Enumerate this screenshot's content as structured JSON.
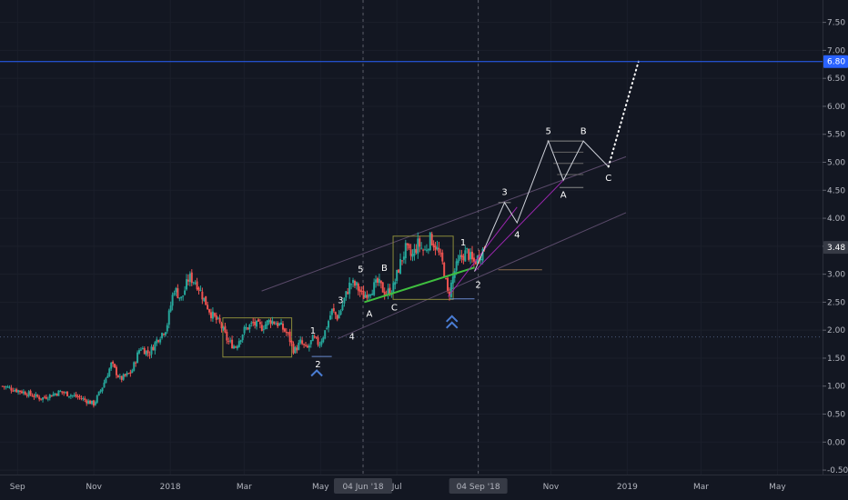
{
  "chart_data": {
    "type": "candlestick",
    "y_axis": {
      "ticks": [
        7.5,
        7.0,
        6.5,
        6.0,
        5.5,
        5.0,
        4.5,
        4.0,
        3.5,
        3.0,
        2.5,
        2.0,
        1.5,
        1.0,
        0.5,
        0.0,
        -0.5
      ],
      "tick_labels": [
        "7.50",
        "7.00",
        "6.50",
        "6.00",
        "5.50",
        "5.00",
        "4.50",
        "4.00",
        "3.50",
        "3.00",
        "2.50",
        "2.00",
        "1.50",
        "1.00",
        "0.50",
        "0.00",
        "-0.50"
      ],
      "ylim": [
        -0.58,
        7.9
      ]
    },
    "x_axis": {
      "ticks": [
        {
          "label": "Sep",
          "x": "2017-09-01"
        },
        {
          "label": "Nov",
          "x": "2017-11-01"
        },
        {
          "label": "2018",
          "x": "2018-01-01"
        },
        {
          "label": "Mar",
          "x": "2018-03-01"
        },
        {
          "label": "May",
          "x": "2018-05-01"
        },
        {
          "label": "04 Jun '18",
          "x": "2018-06-04",
          "highlighted": true
        },
        {
          "label": "Jul",
          "x": "2018-07-01"
        },
        {
          "label": "04 Sep '18",
          "x": "2018-09-04",
          "highlighted": true
        },
        {
          "label": "Nov",
          "x": "2018-11-01"
        },
        {
          "label": "2019",
          "x": "2019-01-01"
        },
        {
          "label": "Mar",
          "x": "2019-03-01"
        },
        {
          "label": "May",
          "x": "2019-05-01"
        }
      ],
      "xlim": [
        "2017-08-18",
        "2019-06-06"
      ]
    },
    "price_labels": [
      {
        "value": "6.80",
        "color": "#2962ff"
      },
      {
        "value": "3.48",
        "color": "#363a45"
      }
    ],
    "horizontal_lines": [
      {
        "y": 6.8,
        "color": "#2962ff"
      },
      {
        "y": 1.88,
        "color": "#4a5a7a",
        "style": "dotted"
      }
    ],
    "vertical_lines": [
      {
        "x": "2018-06-04",
        "color": "#5d606b",
        "style": "dashed"
      },
      {
        "x": "2018-09-04",
        "color": "#5d606b",
        "style": "dashed"
      }
    ],
    "price_path": [
      {
        "x": "2017-08-20",
        "y": 1.0
      },
      {
        "x": "2017-09-05",
        "y": 0.9
      },
      {
        "x": "2017-09-20",
        "y": 0.78
      },
      {
        "x": "2017-10-05",
        "y": 0.9
      },
      {
        "x": "2017-10-20",
        "y": 0.8
      },
      {
        "x": "2017-11-01",
        "y": 0.68
      },
      {
        "x": "2017-11-08",
        "y": 1.0
      },
      {
        "x": "2017-11-15",
        "y": 1.4
      },
      {
        "x": "2017-11-22",
        "y": 1.12
      },
      {
        "x": "2017-12-01",
        "y": 1.25
      },
      {
        "x": "2017-12-08",
        "y": 1.7
      },
      {
        "x": "2017-12-15",
        "y": 1.58
      },
      {
        "x": "2017-12-22",
        "y": 1.85
      },
      {
        "x": "2017-12-29",
        "y": 2.05
      },
      {
        "x": "2018-01-04",
        "y": 2.75
      },
      {
        "x": "2018-01-10",
        "y": 2.55
      },
      {
        "x": "2018-01-16",
        "y": 2.95
      },
      {
        "x": "2018-01-22",
        "y": 2.85
      },
      {
        "x": "2018-01-28",
        "y": 2.55
      },
      {
        "x": "2018-02-03",
        "y": 2.28
      },
      {
        "x": "2018-02-10",
        "y": 2.1
      },
      {
        "x": "2018-02-16",
        "y": 1.8
      },
      {
        "x": "2018-02-22",
        "y": 1.7
      },
      {
        "x": "2018-03-01",
        "y": 2.0
      },
      {
        "x": "2018-03-08",
        "y": 2.12
      },
      {
        "x": "2018-03-15",
        "y": 2.05
      },
      {
        "x": "2018-03-22",
        "y": 2.18
      },
      {
        "x": "2018-03-29",
        "y": 2.1
      },
      {
        "x": "2018-04-05",
        "y": 1.92
      },
      {
        "x": "2018-04-10",
        "y": 1.62
      },
      {
        "x": "2018-04-15",
        "y": 1.78
      },
      {
        "x": "2018-04-20",
        "y": 1.65
      },
      {
        "x": "2018-04-25",
        "y": 1.85
      },
      {
        "x": "2018-04-30",
        "y": 1.75
      },
      {
        "x": "2018-05-05",
        "y": 2.0
      },
      {
        "x": "2018-05-10",
        "y": 2.35
      },
      {
        "x": "2018-05-15",
        "y": 2.22
      },
      {
        "x": "2018-05-20",
        "y": 2.55
      },
      {
        "x": "2018-05-25",
        "y": 2.85
      },
      {
        "x": "2018-05-30",
        "y": 2.78
      },
      {
        "x": "2018-06-04",
        "y": 2.6
      },
      {
        "x": "2018-06-10",
        "y": 2.72
      },
      {
        "x": "2018-06-16",
        "y": 2.85
      },
      {
        "x": "2018-06-22",
        "y": 2.65
      },
      {
        "x": "2018-06-28",
        "y": 2.75
      },
      {
        "x": "2018-07-03",
        "y": 3.15
      },
      {
        "x": "2018-07-08",
        "y": 3.45
      },
      {
        "x": "2018-07-13",
        "y": 3.3
      },
      {
        "x": "2018-07-18",
        "y": 3.55
      },
      {
        "x": "2018-07-23",
        "y": 3.4
      },
      {
        "x": "2018-07-28",
        "y": 3.65
      },
      {
        "x": "2018-08-02",
        "y": 3.45
      },
      {
        "x": "2018-08-07",
        "y": 3.15
      },
      {
        "x": "2018-08-11",
        "y": 2.6
      },
      {
        "x": "2018-08-16",
        "y": 3.05
      },
      {
        "x": "2018-08-21",
        "y": 3.3
      },
      {
        "x": "2018-08-26",
        "y": 3.4
      },
      {
        "x": "2018-08-31",
        "y": 3.2
      },
      {
        "x": "2018-09-04",
        "y": 3.3
      },
      {
        "x": "2018-09-09",
        "y": 3.48
      }
    ],
    "wave_projection": [
      {
        "x": "2018-09-01",
        "y": 3.05
      },
      {
        "x": "2018-09-25",
        "y": 4.28
      },
      {
        "x": "2018-10-05",
        "y": 3.92
      },
      {
        "x": "2018-10-30",
        "y": 5.38
      },
      {
        "x": "2018-11-11",
        "y": 4.68
      },
      {
        "x": "2018-11-27",
        "y": 5.38
      },
      {
        "x": "2018-12-17",
        "y": 4.92
      }
    ],
    "wave_projection_dotted": [
      {
        "x": "2018-12-17",
        "y": 4.92
      },
      {
        "x": "2019-01-10",
        "y": 6.8
      }
    ],
    "wave_labels": [
      {
        "text": "1",
        "x": "2018-04-25",
        "y": 2.0
      },
      {
        "text": "2",
        "x": "2018-04-29",
        "y": 1.4
      },
      {
        "text": "3",
        "x": "2018-05-17",
        "y": 2.55
      },
      {
        "text": "4",
        "x": "2018-05-26",
        "y": 1.9
      },
      {
        "text": "5",
        "x": "2018-06-02",
        "y": 3.1
      },
      {
        "text": "A",
        "x": "2018-06-09",
        "y": 2.3
      },
      {
        "text": "B",
        "x": "2018-06-21",
        "y": 3.12
      },
      {
        "text": "C",
        "x": "2018-06-29",
        "y": 2.42
      },
      {
        "text": "1",
        "x": "2018-08-23",
        "y": 3.58
      },
      {
        "text": "2",
        "x": "2018-09-04",
        "y": 2.82
      },
      {
        "text": "3",
        "x": "2018-09-25",
        "y": 4.48
      },
      {
        "text": "4",
        "x": "2018-10-05",
        "y": 3.72
      },
      {
        "text": "5",
        "x": "2018-10-30",
        "y": 5.57
      },
      {
        "text": "A",
        "x": "2018-11-11",
        "y": 4.43
      },
      {
        "text": "B",
        "x": "2018-11-27",
        "y": 5.57
      },
      {
        "text": "C",
        "x": "2018-12-17",
        "y": 4.73
      }
    ],
    "channels": [
      {
        "from": {
          "x": "2018-03-15",
          "y": 2.7
        },
        "to": {
          "x": "2018-12-31",
          "y": 5.1
        },
        "color": "#5a4a6a"
      },
      {
        "from": {
          "x": "2018-05-15",
          "y": 1.85
        },
        "to": {
          "x": "2018-12-31",
          "y": 4.1
        },
        "color": "#5a4a6a"
      }
    ],
    "trendlines": [
      {
        "from": {
          "x": "2018-06-05",
          "y": 2.5
        },
        "to": {
          "x": "2018-09-01",
          "y": 3.12
        },
        "color": "#3fbf3f"
      },
      {
        "from": {
          "x": "2018-08-11",
          "y": 2.6
        },
        "to": {
          "x": "2018-10-05",
          "y": 4.2
        },
        "color": "#9c27b0"
      },
      {
        "from": {
          "x": "2018-09-01",
          "y": 3.05
        },
        "to": {
          "x": "2018-11-11",
          "y": 4.68
        },
        "color": "#9c27b0"
      }
    ],
    "rectangles": [
      {
        "x1": "2018-02-12",
        "y1": 1.52,
        "x2": "2018-04-08",
        "y2": 2.22,
        "color": "#8a8a3a"
      },
      {
        "x1": "2018-06-28",
        "y1": 2.55,
        "x2": "2018-08-15",
        "y2": 3.68,
        "color": "#8a8a3a"
      }
    ],
    "level_lines": [
      {
        "x1": "2018-09-20",
        "x2": "2018-10-25",
        "y": 3.08,
        "color": "#8a6a4a"
      },
      {
        "x1": "2018-08-12",
        "x2": "2018-09-01",
        "y": 2.56,
        "color": "#6a8ad0"
      },
      {
        "x1": "2018-04-24",
        "x2": "2018-05-10",
        "y": 1.53,
        "color": "#6a8ad0"
      },
      {
        "x1": "2018-09-20",
        "x2": "2018-09-30",
        "y": 4.28,
        "color": "#888888"
      },
      {
        "x1": "2018-10-29",
        "x2": "2018-11-27",
        "y": 5.38,
        "color": "#888888"
      },
      {
        "x1": "2018-11-03",
        "x2": "2018-11-27",
        "y": 5.18,
        "color": "#666666"
      },
      {
        "x1": "2018-11-03",
        "x2": "2018-11-27",
        "y": 4.98,
        "color": "#666666"
      },
      {
        "x1": "2018-11-06",
        "x2": "2018-11-27",
        "y": 4.78,
        "color": "#666666"
      },
      {
        "x1": "2018-11-08",
        "x2": "2018-11-27",
        "y": 4.55,
        "color": "#888888"
      }
    ],
    "markers": [
      {
        "x": "2018-04-28",
        "y": 1.28,
        "shape": "chevron-up",
        "color": "#4a7dd4"
      },
      {
        "x": "2018-08-14",
        "y": 2.25,
        "shape": "double-chevron-up",
        "color": "#4a7dd4"
      }
    ]
  }
}
